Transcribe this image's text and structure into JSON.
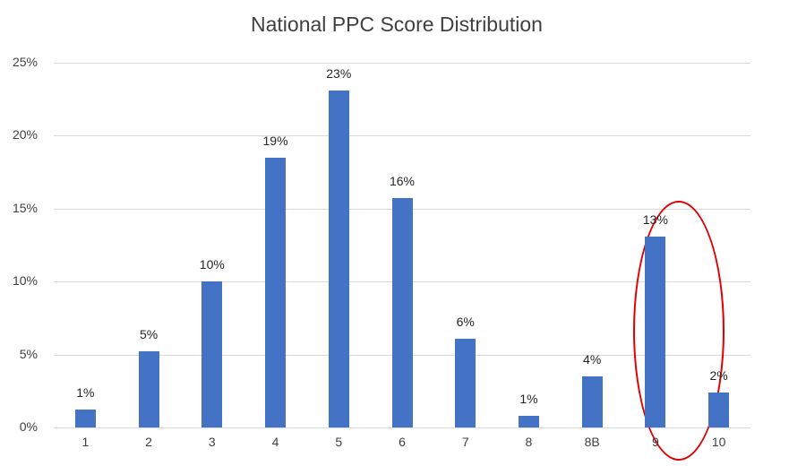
{
  "chart_data": {
    "type": "bar",
    "title": "National PPC Score Distribution",
    "xlabel": "",
    "ylabel": "",
    "categories": [
      "1",
      "2",
      "3",
      "4",
      "5",
      "6",
      "7",
      "8",
      "8B",
      "9",
      "10"
    ],
    "values": [
      1.2,
      5.2,
      10.0,
      18.5,
      23.1,
      15.7,
      6.1,
      0.8,
      3.5,
      13.1,
      2.4
    ],
    "data_labels": [
      "1%",
      "5%",
      "10%",
      "19%",
      "23%",
      "16%",
      "6%",
      "1%",
      "4%",
      "13%",
      "2%"
    ],
    "yticks": [
      "0%",
      "5%",
      "10%",
      "15%",
      "20%",
      "25%"
    ],
    "ylim": [
      0,
      25
    ],
    "grid": true,
    "legend": null,
    "bar_color": "#4472c4",
    "annotations": [
      {
        "type": "ellipse",
        "target_category": "9",
        "color": "#e00000"
      }
    ]
  }
}
